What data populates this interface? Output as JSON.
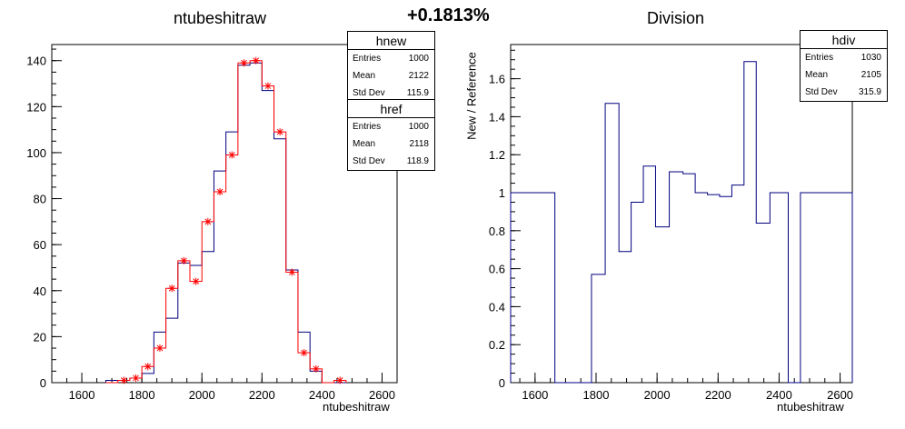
{
  "header": {
    "difference": "+0.1813%"
  },
  "chart_data": [
    {
      "type": "histogram",
      "title": "ntubeshitraw",
      "xlabel": "ntubeshitraw",
      "ylabel": "",
      "xlim": [
        1500,
        2650
      ],
      "ylim": [
        0,
        147
      ],
      "xticks": [
        1600,
        1800,
        2000,
        2200,
        2400,
        2600
      ],
      "yticks": [
        0,
        20,
        40,
        60,
        80,
        100,
        120,
        140
      ],
      "bin_edges": [
        1680,
        1720,
        1760,
        1800,
        1840,
        1880,
        1920,
        1960,
        2000,
        2040,
        2080,
        2120,
        2160,
        2200,
        2240,
        2280,
        2320,
        2360,
        2400,
        2440,
        2480
      ],
      "series": [
        {
          "name": "hnew",
          "color": "#000080",
          "style": "step",
          "values": [
            1,
            1,
            2,
            4,
            22,
            28,
            52,
            51,
            57,
            92,
            109,
            138,
            139,
            127,
            106,
            49,
            22,
            5,
            0,
            0
          ]
        },
        {
          "name": "href",
          "color": "#ff0000",
          "style": "step-markers",
          "values": [
            0,
            1,
            2,
            7,
            15,
            41,
            53,
            44,
            70,
            83,
            99,
            139,
            140,
            129,
            109,
            48,
            13,
            6,
            0,
            1
          ]
        }
      ],
      "stats": [
        {
          "name": "hnew",
          "entries_label": "Entries",
          "entries": "1000",
          "mean_label": "Mean",
          "mean": "2122",
          "std_label": "Std Dev",
          "std": "115.9"
        },
        {
          "name": "href",
          "entries_label": "Entries",
          "entries": "1000",
          "mean_label": "Mean",
          "mean": "2118",
          "std_label": "Std Dev",
          "std": "118.9"
        }
      ]
    },
    {
      "type": "histogram",
      "title": "Division",
      "xlabel": "ntubeshitraw",
      "ylabel": "New / Reference",
      "xlim": [
        1520,
        2640
      ],
      "ylim": [
        0,
        1.78
      ],
      "xticks": [
        1600,
        1800,
        2000,
        2200,
        2400,
        2600
      ],
      "yticks": [
        0,
        0.2,
        0.4,
        0.6,
        0.8,
        1,
        1.2,
        1.4,
        1.6
      ],
      "bin_edges": [
        1520,
        1665,
        1785,
        1830,
        1875,
        1915,
        1955,
        1995,
        2040,
        2085,
        2125,
        2165,
        2205,
        2245,
        2285,
        2325,
        2370,
        2430,
        2470,
        2640
      ],
      "series": [
        {
          "name": "hdiv",
          "color": "#000080",
          "style": "step",
          "values": [
            1.0,
            0,
            0.57,
            1.47,
            0.69,
            0.95,
            1.14,
            0.82,
            1.11,
            1.1,
            1.0,
            0.99,
            0.98,
            1.04,
            1.69,
            0.84,
            1.0,
            0,
            1.0
          ]
        }
      ],
      "stats": [
        {
          "name": "hdiv",
          "entries_label": "Entries",
          "entries": "1030",
          "mean_label": "Mean",
          "mean": "2105",
          "std_label": "Std Dev",
          "std": "315.9"
        }
      ]
    }
  ]
}
